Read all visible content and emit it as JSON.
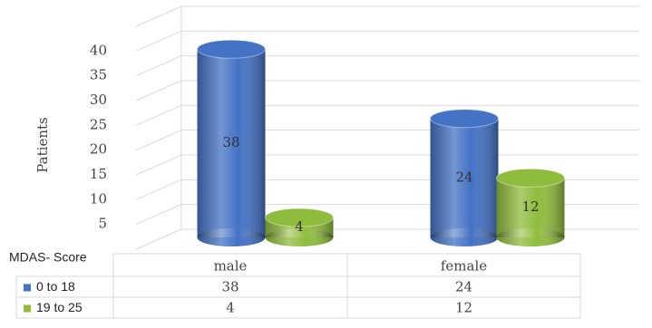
{
  "chart_data": {
    "type": "bar",
    "y_label": "Patients",
    "table_label": "MDAS- Score",
    "categories": [
      "male",
      "female"
    ],
    "series": [
      {
        "name": "0 to 18",
        "color": "#4472c4",
        "values": [
          38,
          24
        ]
      },
      {
        "name": "19 to 25",
        "color": "#8fbc3c",
        "values": [
          4,
          12
        ]
      }
    ],
    "ylim": [
      0,
      45
    ],
    "yticks": [
      5,
      10,
      15,
      20,
      25,
      30,
      35,
      40
    ],
    "grid": true
  }
}
